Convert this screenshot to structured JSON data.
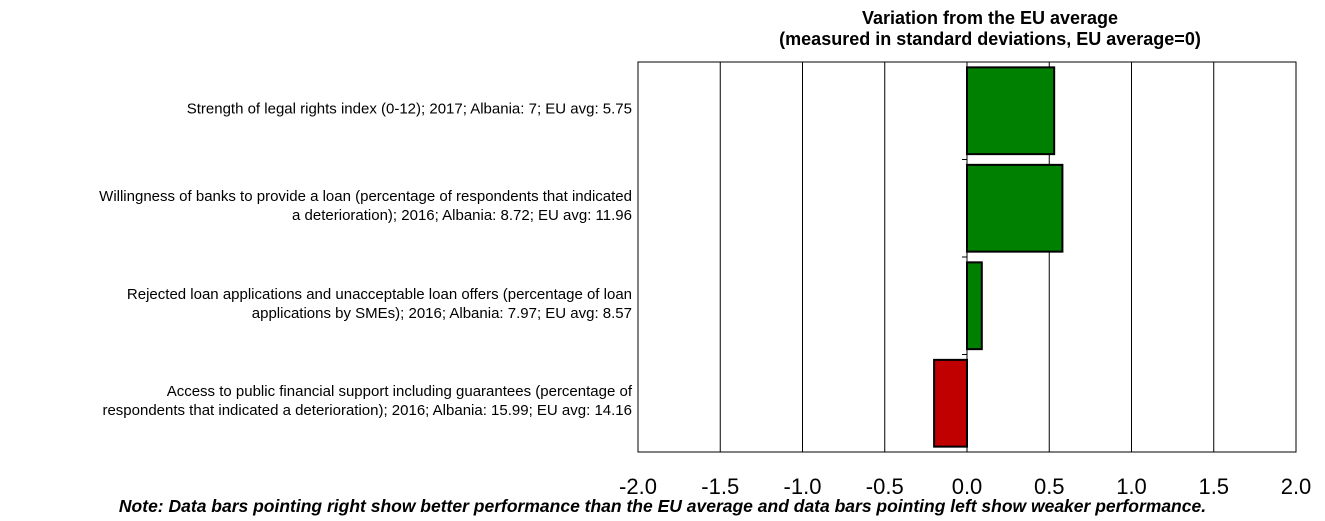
{
  "chart_data": {
    "type": "bar",
    "orientation": "horizontal",
    "title": "Variation from the EU average",
    "subtitle": "(measured in standard deviations, EU average=0)",
    "categories": [
      "Strength of legal rights index (0-12); 2017; Albania: 7; EU avg: 5.75",
      "Willingness of banks to provide a loan (percentage of respondents that indicated a deterioration); 2016; Albania: 8.72; EU avg: 11.96",
      "Rejected loan applications and unacceptable loan offers (percentage of loan applications by SMEs); 2016; Albania: 7.97; EU avg: 8.57",
      "Access to public financial support including guarantees (percentage of respondents that indicated a deterioration); 2016; Albania: 15.99; EU avg: 14.16"
    ],
    "category_lines": [
      [
        "Strength of legal rights index (0-12); 2017; Albania: 7; EU avg: 5.75"
      ],
      [
        "Willingness of banks to provide a loan (percentage of respondents that indicated",
        "a deterioration); 2016; Albania: 8.72; EU avg: 11.96"
      ],
      [
        "Rejected loan applications and unacceptable loan offers (percentage of loan",
        "applications by SMEs); 2016; Albania: 7.97; EU avg: 8.57"
      ],
      [
        "Access to public financial support including guarantees (percentage of",
        "respondents that indicated a deterioration); 2016; Albania: 15.99; EU avg: 14.16"
      ]
    ],
    "values": [
      0.53,
      0.58,
      0.09,
      -0.2
    ],
    "xlim": [
      -2.0,
      2.0
    ],
    "xticks": [
      -2.0,
      -1.5,
      -1.0,
      -0.5,
      0.0,
      0.5,
      1.0,
      1.5,
      2.0
    ],
    "xtick_labels": [
      "-2.0",
      "-1.5",
      "-1.0",
      "-0.5",
      "0.0",
      "0.5",
      "1.0",
      "1.5",
      "2.0"
    ],
    "grid": true,
    "colors": {
      "positive": "#008000",
      "negative": "#c00000",
      "border": "#000000"
    }
  },
  "note": "Note: Data bars pointing right show better performance than the EU average and data bars pointing left show weaker performance."
}
